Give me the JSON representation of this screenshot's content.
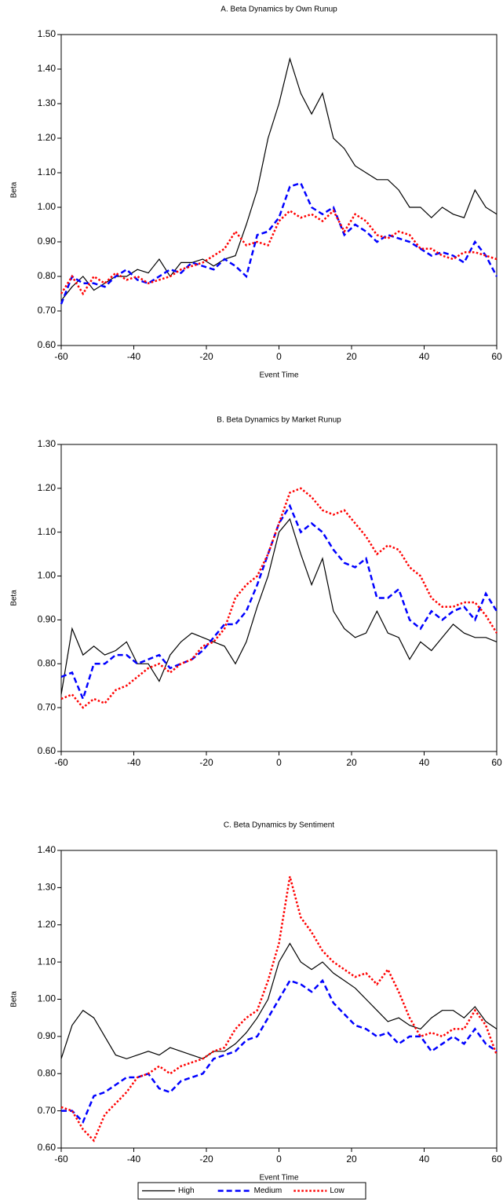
{
  "chart_data": [
    {
      "type": "line",
      "title": "A. Beta Dynamics by Own Runup",
      "x_label": "Event Time",
      "y_label": "Beta",
      "x": [
        -60,
        -57,
        -54,
        -51,
        -48,
        -45,
        -42,
        -39,
        -36,
        -33,
        -30,
        -27,
        -24,
        -21,
        -18,
        -15,
        -12,
        -9,
        -6,
        -3,
        0,
        3,
        6,
        9,
        12,
        15,
        18,
        21,
        24,
        27,
        30,
        33,
        36,
        39,
        42,
        45,
        48,
        51,
        54,
        57,
        60
      ],
      "xlim": [
        -60,
        60
      ],
      "xticks": [
        -60,
        -40,
        -20,
        0,
        20,
        40,
        60
      ],
      "ylim": [
        0.6,
        1.5
      ],
      "yticks": [
        {
          "value": 0.6,
          "label": "0.60"
        },
        {
          "value": 0.7,
          "label": "0.70"
        },
        {
          "value": 0.8,
          "label": "0.80"
        },
        {
          "value": 0.9,
          "label": "0.90"
        },
        {
          "value": 1.0,
          "label": "1.00"
        },
        {
          "value": 1.1,
          "label": "1.10"
        },
        {
          "value": 1.2,
          "label": "1.20"
        },
        {
          "value": 1.3,
          "label": "1.30"
        },
        {
          "value": 1.4,
          "label": "1.40"
        },
        {
          "value": 1.5,
          "label": "1.50"
        }
      ],
      "series": [
        {
          "color": "#000000",
          "dash": "solid",
          "values": [
            0.73,
            0.77,
            0.8,
            0.76,
            0.78,
            0.8,
            0.8,
            0.82,
            0.81,
            0.85,
            0.8,
            0.84,
            0.84,
            0.85,
            0.83,
            0.85,
            0.86,
            0.95,
            1.05,
            1.2,
            1.3,
            1.43,
            1.33,
            1.27,
            1.33,
            1.2,
            1.17,
            1.12,
            1.1,
            1.08,
            1.08,
            1.05,
            1.0,
            1.0,
            0.97,
            1.0,
            0.98,
            0.97,
            1.05,
            1.0,
            0.98
          ]
        },
        {
          "color": "#0000ff",
          "dash": "dashed",
          "values": [
            0.72,
            0.8,
            0.78,
            0.78,
            0.77,
            0.8,
            0.82,
            0.79,
            0.78,
            0.8,
            0.82,
            0.81,
            0.84,
            0.83,
            0.82,
            0.85,
            0.83,
            0.8,
            0.92,
            0.93,
            0.97,
            1.06,
            1.07,
            1.0,
            0.98,
            1.0,
            0.92,
            0.95,
            0.93,
            0.9,
            0.92,
            0.91,
            0.9,
            0.88,
            0.86,
            0.87,
            0.86,
            0.84,
            0.9,
            0.86,
            0.8
          ]
        },
        {
          "color": "#ff0000",
          "dash": "dotted",
          "values": [
            0.75,
            0.8,
            0.75,
            0.8,
            0.78,
            0.81,
            0.79,
            0.8,
            0.78,
            0.79,
            0.8,
            0.82,
            0.83,
            0.84,
            0.86,
            0.88,
            0.93,
            0.89,
            0.9,
            0.89,
            0.96,
            0.99,
            0.97,
            0.98,
            0.96,
            0.99,
            0.93,
            0.98,
            0.96,
            0.92,
            0.91,
            0.93,
            0.92,
            0.88,
            0.88,
            0.86,
            0.85,
            0.87,
            0.87,
            0.86,
            0.85
          ]
        }
      ]
    },
    {
      "type": "line",
      "title": "B. Beta Dynamics by Market Runup",
      "y_label": "Beta",
      "x": [
        -60,
        -57,
        -54,
        -51,
        -48,
        -45,
        -42,
        -39,
        -36,
        -33,
        -30,
        -27,
        -24,
        -21,
        -18,
        -15,
        -12,
        -9,
        -6,
        -3,
        0,
        3,
        6,
        9,
        12,
        15,
        18,
        21,
        24,
        27,
        30,
        33,
        36,
        39,
        42,
        45,
        48,
        51,
        54,
        57,
        60
      ],
      "xlim": [
        -60,
        60
      ],
      "xticks": [
        -60,
        -40,
        -20,
        0,
        20,
        40,
        60
      ],
      "ylim": [
        0.6,
        1.3
      ],
      "yticks": [
        {
          "value": 0.6,
          "label": "0.60"
        },
        {
          "value": 0.7,
          "label": "0.70"
        },
        {
          "value": 0.8,
          "label": "0.80"
        },
        {
          "value": 0.9,
          "label": "0.90"
        },
        {
          "value": 1.0,
          "label": "1.00"
        },
        {
          "value": 1.1,
          "label": "1.10"
        },
        {
          "value": 1.2,
          "label": "1.20"
        },
        {
          "value": 1.3,
          "label": "1.30"
        }
      ],
      "series": [
        {
          "color": "#000000",
          "dash": "solid",
          "values": [
            0.73,
            0.88,
            0.82,
            0.84,
            0.82,
            0.83,
            0.85,
            0.8,
            0.8,
            0.76,
            0.82,
            0.85,
            0.87,
            0.86,
            0.85,
            0.84,
            0.8,
            0.85,
            0.93,
            1.0,
            1.1,
            1.13,
            1.05,
            0.98,
            1.04,
            0.92,
            0.88,
            0.86,
            0.87,
            0.92,
            0.87,
            0.86,
            0.81,
            0.85,
            0.83,
            0.86,
            0.89,
            0.87,
            0.86,
            0.86,
            0.85
          ]
        },
        {
          "color": "#0000ff",
          "dash": "dashed",
          "values": [
            0.77,
            0.78,
            0.72,
            0.8,
            0.8,
            0.82,
            0.82,
            0.8,
            0.81,
            0.82,
            0.79,
            0.8,
            0.81,
            0.83,
            0.86,
            0.89,
            0.89,
            0.92,
            0.98,
            1.05,
            1.12,
            1.16,
            1.1,
            1.12,
            1.1,
            1.06,
            1.03,
            1.02,
            1.04,
            0.95,
            0.95,
            0.97,
            0.9,
            0.88,
            0.92,
            0.9,
            0.92,
            0.93,
            0.9,
            0.96,
            0.92
          ]
        },
        {
          "color": "#ff0000",
          "dash": "dotted",
          "values": [
            0.72,
            0.73,
            0.7,
            0.72,
            0.71,
            0.74,
            0.75,
            0.77,
            0.79,
            0.8,
            0.78,
            0.8,
            0.81,
            0.84,
            0.85,
            0.88,
            0.95,
            0.98,
            1.0,
            1.05,
            1.12,
            1.19,
            1.2,
            1.18,
            1.15,
            1.14,
            1.15,
            1.12,
            1.09,
            1.05,
            1.07,
            1.06,
            1.02,
            1.0,
            0.95,
            0.93,
            0.93,
            0.94,
            0.94,
            0.91,
            0.87
          ]
        }
      ]
    },
    {
      "type": "line",
      "title": "C. Beta Dynamics by Sentiment",
      "x_label": "Event Time",
      "y_label": "Beta",
      "x": [
        -60,
        -57,
        -54,
        -51,
        -48,
        -45,
        -42,
        -39,
        -36,
        -33,
        -30,
        -27,
        -24,
        -21,
        -18,
        -15,
        -12,
        -9,
        -6,
        -3,
        0,
        3,
        6,
        9,
        12,
        15,
        18,
        21,
        24,
        27,
        30,
        33,
        36,
        39,
        42,
        45,
        48,
        51,
        54,
        57,
        60
      ],
      "xlim": [
        -60,
        60
      ],
      "xticks": [
        -60,
        -40,
        -20,
        0,
        20,
        40,
        60
      ],
      "ylim": [
        0.6,
        1.4
      ],
      "yticks": [
        {
          "value": 0.6,
          "label": "0.60"
        },
        {
          "value": 0.7,
          "label": "0.70"
        },
        {
          "value": 0.8,
          "label": "0.80"
        },
        {
          "value": 0.9,
          "label": "0.90"
        },
        {
          "value": 1.0,
          "label": "1.00"
        },
        {
          "value": 1.1,
          "label": "1.10"
        },
        {
          "value": 1.2,
          "label": "1.20"
        },
        {
          "value": 1.3,
          "label": "1.30"
        },
        {
          "value": 1.4,
          "label": "1.40"
        }
      ],
      "legend": "bottom",
      "series": [
        {
          "name": "High",
          "color": "#000000",
          "dash": "solid",
          "values": [
            0.84,
            0.93,
            0.97,
            0.95,
            0.9,
            0.85,
            0.84,
            0.85,
            0.86,
            0.85,
            0.87,
            0.86,
            0.85,
            0.84,
            0.86,
            0.86,
            0.88,
            0.91,
            0.95,
            1.0,
            1.1,
            1.15,
            1.1,
            1.08,
            1.1,
            1.07,
            1.05,
            1.03,
            1.0,
            0.97,
            0.94,
            0.95,
            0.93,
            0.92,
            0.95,
            0.97,
            0.97,
            0.95,
            0.98,
            0.94,
            0.92
          ]
        },
        {
          "name": "Medium",
          "color": "#0000ff",
          "dash": "dashed",
          "values": [
            0.7,
            0.7,
            0.67,
            0.74,
            0.75,
            0.77,
            0.79,
            0.79,
            0.8,
            0.76,
            0.75,
            0.78,
            0.79,
            0.8,
            0.84,
            0.85,
            0.86,
            0.89,
            0.9,
            0.95,
            1.0,
            1.05,
            1.04,
            1.02,
            1.05,
            0.99,
            0.96,
            0.93,
            0.92,
            0.9,
            0.91,
            0.88,
            0.9,
            0.9,
            0.86,
            0.88,
            0.9,
            0.88,
            0.92,
            0.88,
            0.86
          ]
        },
        {
          "name": "Low",
          "color": "#ff0000",
          "dash": "dotted",
          "values": [
            0.71,
            0.7,
            0.65,
            0.62,
            0.69,
            0.72,
            0.75,
            0.79,
            0.8,
            0.82,
            0.8,
            0.82,
            0.83,
            0.84,
            0.86,
            0.87,
            0.92,
            0.95,
            0.97,
            1.05,
            1.15,
            1.33,
            1.22,
            1.18,
            1.13,
            1.1,
            1.08,
            1.06,
            1.07,
            1.04,
            1.08,
            1.02,
            0.95,
            0.9,
            0.91,
            0.9,
            0.92,
            0.92,
            0.97,
            0.93,
            0.85
          ]
        }
      ]
    }
  ]
}
